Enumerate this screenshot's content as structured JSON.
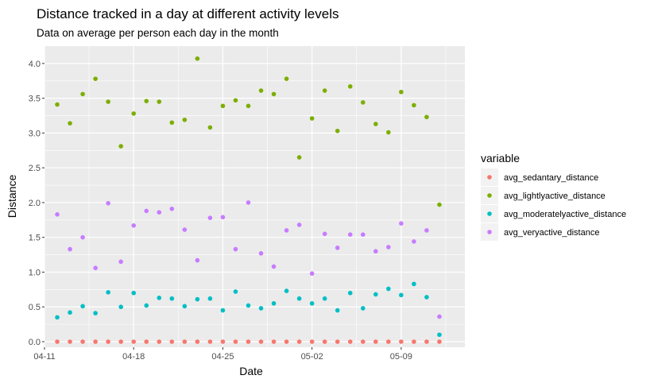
{
  "chart_data": {
    "type": "scatter",
    "title": "Distance tracked in a day at different activity levels",
    "subtitle": "Data on average per person each day in the month",
    "xlabel": "Date",
    "ylabel": "Distance",
    "x_ticks": [
      "04-11",
      "04-18",
      "04-25",
      "05-02",
      "05-09"
    ],
    "y_ticks": [
      "0.0",
      "0.5",
      "1.0",
      "1.5",
      "2.0",
      "2.5",
      "3.0",
      "3.5",
      "4.0"
    ],
    "xlim": [
      "2016-04-11",
      "2016-05-14"
    ],
    "ylim": [
      -0.08,
      4.25
    ],
    "grid": true,
    "legend": {
      "title": "variable",
      "position": "right"
    },
    "dates": [
      "2016-04-12",
      "2016-04-13",
      "2016-04-14",
      "2016-04-15",
      "2016-04-16",
      "2016-04-17",
      "2016-04-18",
      "2016-04-19",
      "2016-04-20",
      "2016-04-21",
      "2016-04-22",
      "2016-04-23",
      "2016-04-24",
      "2016-04-25",
      "2016-04-26",
      "2016-04-27",
      "2016-04-28",
      "2016-04-29",
      "2016-04-30",
      "2016-05-01",
      "2016-05-02",
      "2016-05-03",
      "2016-05-04",
      "2016-05-05",
      "2016-05-06",
      "2016-05-07",
      "2016-05-08",
      "2016-05-09",
      "2016-05-10",
      "2016-05-11",
      "2016-05-12"
    ],
    "series": [
      {
        "name": "avg_sedantary_distance",
        "color": "#F8766D",
        "values": [
          0.0,
          0.0,
          0.0,
          0.0,
          0.0,
          0.0,
          0.0,
          0.0,
          0.0,
          0.0,
          0.0,
          0.0,
          0.0,
          0.0,
          0.0,
          0.0,
          0.0,
          0.0,
          0.0,
          0.0,
          0.0,
          0.0,
          0.0,
          0.0,
          0.0,
          0.0,
          0.0,
          0.0,
          0.0,
          0.0,
          0.0
        ]
      },
      {
        "name": "avg_lightlyactive_distance",
        "color": "#7CAE00",
        "values": [
          3.41,
          3.14,
          3.56,
          3.78,
          3.45,
          2.81,
          3.28,
          3.46,
          3.45,
          3.15,
          3.19,
          4.07,
          3.08,
          3.39,
          3.47,
          3.39,
          3.61,
          3.56,
          3.78,
          2.65,
          3.21,
          3.61,
          3.03,
          3.67,
          3.44,
          3.13,
          3.01,
          3.59,
          3.4,
          3.23,
          1.97
        ]
      },
      {
        "name": "avg_moderatelyactive_distance",
        "color": "#00BFC4",
        "values": [
          0.35,
          0.42,
          0.51,
          0.41,
          0.71,
          0.5,
          0.7,
          0.52,
          0.63,
          0.62,
          0.51,
          0.61,
          0.62,
          0.45,
          0.72,
          0.52,
          0.48,
          0.55,
          0.73,
          0.62,
          0.55,
          0.62,
          0.45,
          0.7,
          0.48,
          0.68,
          0.76,
          0.67,
          0.83,
          0.64,
          0.1
        ]
      },
      {
        "name": "avg_veryactive_distance",
        "color": "#C77CFF",
        "values": [
          1.83,
          1.33,
          1.5,
          1.06,
          1.99,
          1.15,
          1.67,
          1.88,
          1.86,
          1.91,
          1.61,
          1.17,
          1.78,
          1.79,
          1.33,
          2.0,
          1.27,
          1.08,
          1.6,
          1.68,
          0.98,
          1.55,
          1.35,
          1.54,
          1.54,
          1.3,
          1.36,
          1.7,
          1.44,
          1.6,
          0.36
        ]
      }
    ]
  }
}
